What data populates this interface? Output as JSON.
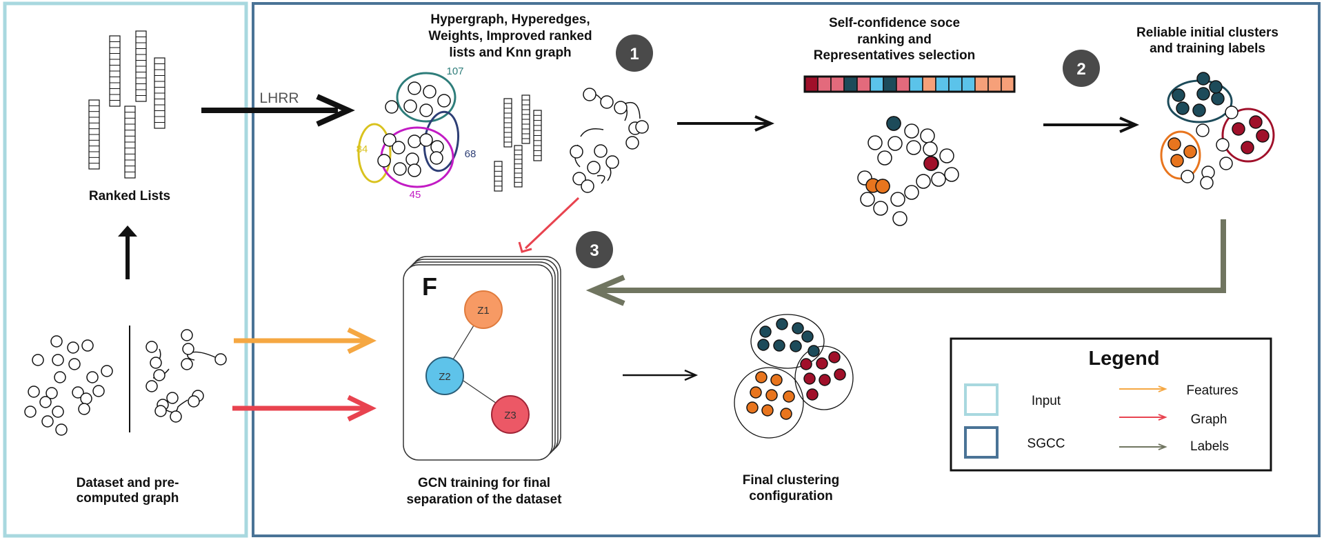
{
  "colors": {
    "input_border": "#a8d8df",
    "sgcc_border": "#4a7396",
    "features_arrow": "#f5a742",
    "graph_arrow": "#e8434f",
    "labels_arrow": "#707560",
    "teal_ellipse": "#2e7d7a",
    "navy_ellipse": "#2d3e75",
    "yellow_ellipse": "#d9c21e",
    "magenta_ellipse": "#c21bc4",
    "dark_teal_node": "#1d4b5a",
    "dark_red_node": "#a0102a",
    "orange_node": "#e8751e",
    "z1": "#f79a64",
    "z2": "#5ec3ea",
    "z3": "#ec5866",
    "badge": "#4a4a4a"
  },
  "sections": {
    "ranked_lists": "Ranked Lists",
    "dataset_line1": "Dataset and pre-",
    "dataset_line2": "computed graph",
    "lhrr": "LHRR",
    "hypergraph_line1": "Hypergraph, Hyperedges,",
    "hypergraph_line2": "Weights, Improved ranked",
    "hypergraph_line3": "lists and Knn graph",
    "selfconf_line1": "Self-confidence soce",
    "selfconf_line2": "ranking and",
    "selfconf_line3": "Representatives selection",
    "reliable_line1": "Reliable initial clusters",
    "reliable_line2": "and training labels",
    "gcn_line1": "GCN training for final",
    "gcn_line2": "separation of the dataset",
    "final_line1": "Final clustering",
    "final_line2": "configuration"
  },
  "hyperedge_weights": {
    "teal": "107",
    "yellow": "84",
    "navy": "68",
    "magenta": "45"
  },
  "badges": [
    "1",
    "2",
    "3"
  ],
  "gcn": {
    "stack_letter": "F",
    "nodes": [
      "Z1",
      "Z2",
      "Z3"
    ]
  },
  "score_bar_colors": [
    "#a0102a",
    "#e36a7c",
    "#e36a7c",
    "#1d4b5a",
    "#e36a7c",
    "#5bc3ea",
    "#1d4b5a",
    "#e36a7c",
    "#5bc3ea",
    "#f6a079",
    "#5bc3ea",
    "#5bc3ea",
    "#5bc3ea",
    "#f6a079",
    "#f6a079",
    "#f6a079"
  ],
  "legend": {
    "title": "Legend",
    "input": "Input",
    "sgcc": "SGCC",
    "features": "Features",
    "graph": "Graph",
    "labels": "Labels"
  }
}
